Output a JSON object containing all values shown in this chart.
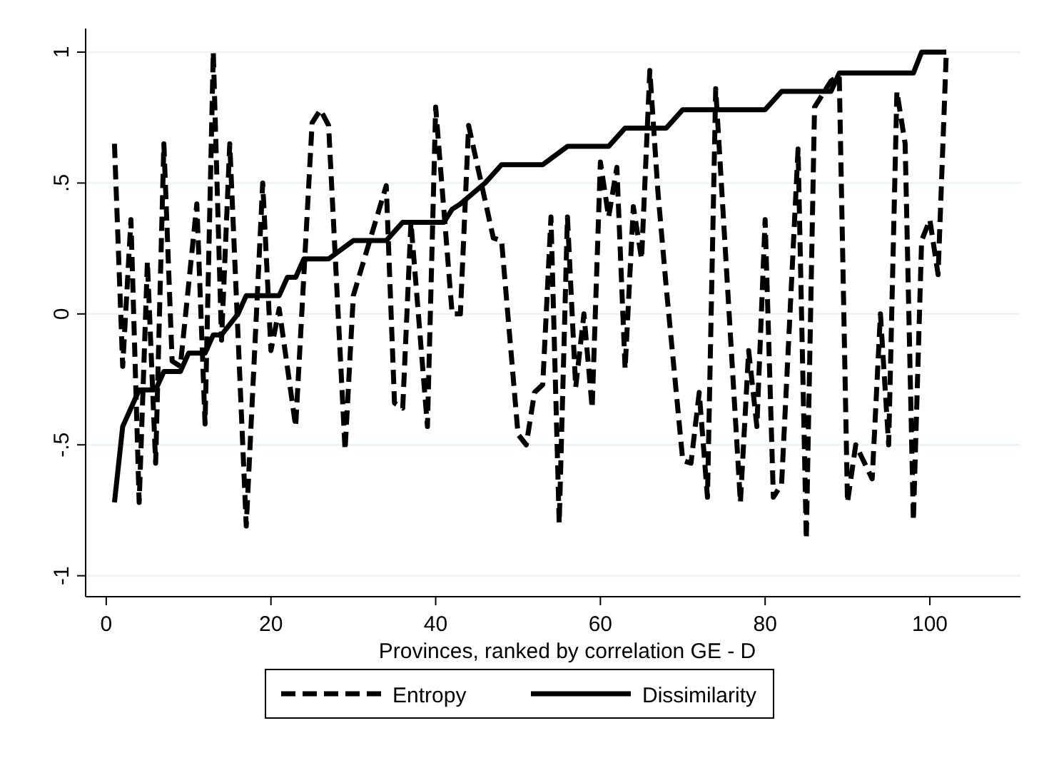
{
  "chart_data": {
    "type": "line",
    "xlabel": "Provinces, ranked by correlation GE - D",
    "xlim": [
      -2.5,
      111
    ],
    "xticks": [
      0,
      20,
      40,
      60,
      80,
      100
    ],
    "ylim": [
      -1.08,
      1.09
    ],
    "yticks": [
      {
        "value": -1,
        "label": "-1"
      },
      {
        "value": -0.5,
        "label": "-.5"
      },
      0,
      {
        "value": 0.5,
        "label": ".5"
      },
      1
    ],
    "grid": "y",
    "legend": "bottom",
    "series": [
      {
        "name": "Entropy",
        "color": "#000000",
        "line_style": "dashed",
        "x": [
          1,
          2,
          3,
          4,
          5,
          6,
          7,
          8,
          9,
          11,
          12,
          13,
          14,
          15,
          17,
          19,
          20,
          21,
          23,
          25,
          26,
          27,
          29,
          30,
          34,
          35,
          36,
          37,
          39,
          40,
          42,
          43,
          44,
          47,
          48,
          50,
          51,
          52,
          53,
          54,
          55,
          56,
          57,
          58,
          59,
          60,
          61,
          62,
          63,
          64,
          65,
          66,
          67,
          68,
          70,
          71,
          72,
          73,
          74,
          77,
          78,
          79,
          80,
          81,
          82,
          84,
          85,
          86,
          88,
          89,
          90,
          91,
          93,
          94,
          95,
          96,
          97,
          98,
          99,
          100,
          101,
          102
        ],
        "values": [
          0.65,
          -0.2,
          0.36,
          -0.72,
          0.2,
          -0.57,
          0.65,
          -0.18,
          -0.2,
          0.42,
          -0.42,
          1,
          -0.1,
          0.65,
          -0.81,
          0.5,
          -0.14,
          0.02,
          -0.43,
          0.73,
          0.78,
          0.72,
          -0.52,
          0.07,
          0.49,
          -0.34,
          -0.36,
          0.35,
          -0.43,
          0.79,
          0,
          0,
          0.72,
          0.29,
          0.28,
          -0.46,
          -0.5,
          -0.3,
          -0.27,
          0.37,
          -0.8,
          0.37,
          -0.28,
          0,
          -0.36,
          0.58,
          0.37,
          0.56,
          -0.21,
          0.41,
          0.21,
          0.93,
          0.46,
          0.1,
          -0.56,
          -0.57,
          -0.3,
          -0.7,
          0.86,
          -0.72,
          -0.14,
          -0.43,
          0.36,
          -0.7,
          -0.65,
          0.63,
          -0.86,
          0.79,
          0.89,
          0.91,
          -0.72,
          -0.5,
          -0.63,
          0,
          -0.5,
          0.85,
          0.65,
          -0.79,
          0.28,
          0.36,
          0.15,
          1
        ]
      },
      {
        "name": "Dissimilarity",
        "color": "#000000",
        "line_style": "solid",
        "x": [
          1,
          2,
          4,
          6,
          7,
          9,
          10,
          12,
          13,
          14,
          16,
          17,
          21,
          22,
          23,
          24,
          27,
          30,
          34,
          36,
          41,
          42,
          43,
          46,
          48,
          53,
          56,
          61,
          63,
          68,
          70,
          80,
          82,
          88,
          89,
          98,
          99,
          102
        ],
        "values": [
          -0.72,
          -0.43,
          -0.29,
          -0.29,
          -0.22,
          -0.22,
          -0.15,
          -0.15,
          -0.08,
          -0.08,
          0,
          0.07,
          0.07,
          0.14,
          0.14,
          0.21,
          0.21,
          0.28,
          0.28,
          0.35,
          0.35,
          0.4,
          0.42,
          0.5,
          0.57,
          0.57,
          0.64,
          0.64,
          0.71,
          0.71,
          0.78,
          0.78,
          0.85,
          0.85,
          0.92,
          0.92,
          1,
          1
        ]
      }
    ]
  }
}
